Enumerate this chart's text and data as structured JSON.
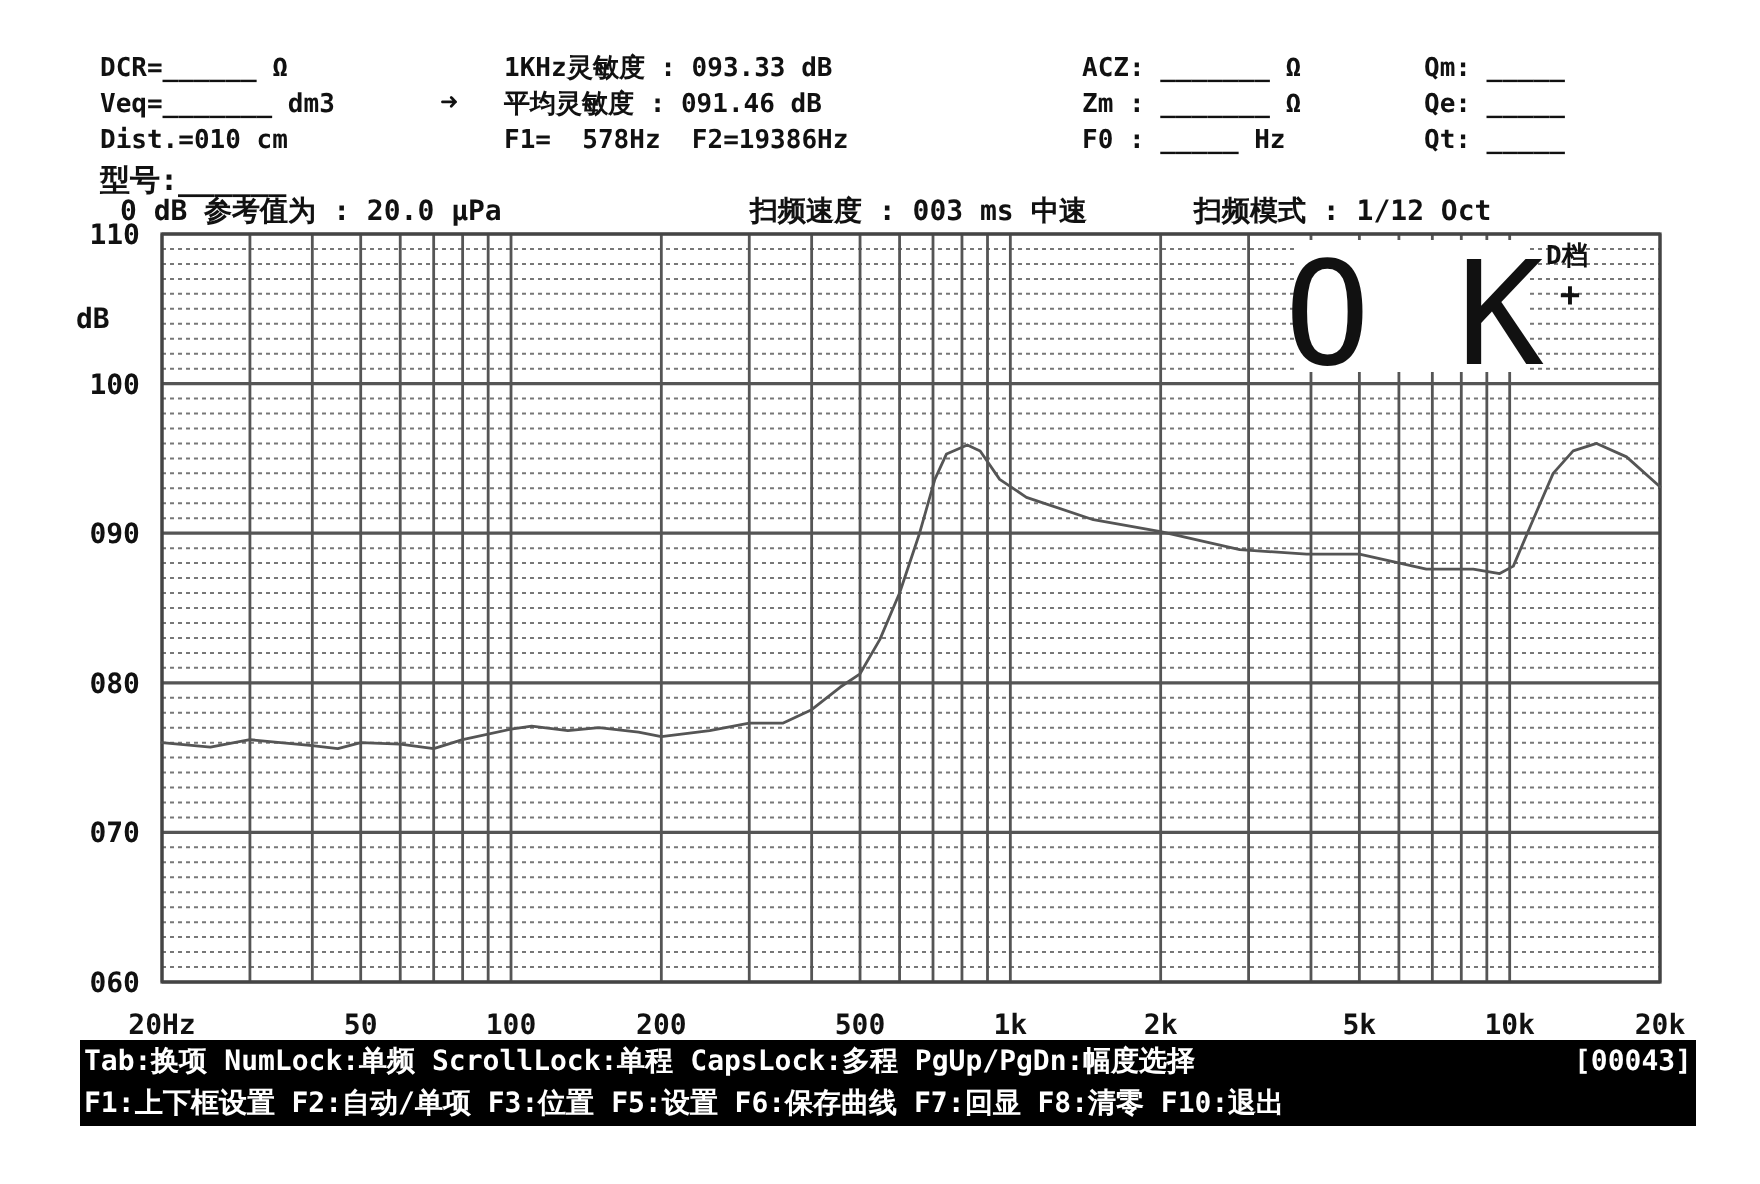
{
  "chart_data": {
    "type": "line",
    "ylabel": "dB",
    "x": [
      20,
      25,
      30,
      40,
      45,
      50,
      60,
      70,
      80,
      100,
      110,
      130,
      150,
      180,
      200,
      250,
      300,
      350,
      400,
      456,
      500,
      548,
      600,
      658,
      706,
      745,
      820,
      870,
      952,
      1077,
      1466,
      2000,
      2880,
      3920,
      5000,
      6810,
      8450,
      9550,
      10170,
      11140,
      12220,
      13400,
      14930,
      17140,
      20000
    ],
    "series": [
      {
        "color": "#555555",
        "values": [
          76.0,
          75.7,
          76.2,
          75.8,
          75.6,
          76.0,
          75.9,
          75.6,
          76.2,
          76.9,
          77.1,
          76.8,
          77.0,
          76.7,
          76.4,
          76.8,
          77.3,
          77.3,
          78.2,
          79.7,
          80.6,
          82.9,
          86.0,
          90.0,
          93.6,
          95.3,
          95.9,
          95.5,
          93.6,
          92.4,
          90.9,
          90.1,
          88.9,
          88.6,
          88.6,
          87.6,
          87.6,
          87.3,
          87.8,
          90.9,
          94.0,
          95.5,
          96.0,
          95.1,
          93.1
        ]
      }
    ],
    "log": "x",
    "xlim": [
      20,
      20000
    ],
    "ylim": [
      60,
      110
    ],
    "xticks": [
      {
        "value": 20,
        "label": "20Hz"
      },
      {
        "value": 30,
        "label": null
      },
      {
        "value": 40,
        "label": null
      },
      50,
      {
        "value": 60,
        "label": null
      },
      {
        "value": 70,
        "label": null
      },
      {
        "value": 80,
        "label": null
      },
      {
        "value": 90,
        "label": null
      },
      100,
      200,
      {
        "value": 300,
        "label": null
      },
      {
        "value": 400,
        "label": null
      },
      500,
      {
        "value": 600,
        "label": null
      },
      {
        "value": 700,
        "label": null
      },
      {
        "value": 800,
        "label": null
      },
      {
        "value": 900,
        "label": null
      },
      {
        "value": 1000,
        "label": "1k"
      },
      {
        "value": 2000,
        "label": "2k"
      },
      {
        "value": 3000,
        "label": null
      },
      {
        "value": 4000,
        "label": null
      },
      {
        "value": 5000,
        "label": "5k"
      },
      {
        "value": 6000,
        "label": null
      },
      {
        "value": 7000,
        "label": null
      },
      {
        "value": 8000,
        "label": null
      },
      {
        "value": 9000,
        "label": null
      },
      {
        "value": 10000,
        "label": "10k"
      },
      {
        "value": 20000,
        "label": "20k"
      }
    ],
    "yticks": [
      {
        "value": 60,
        "label": "060"
      },
      {
        "value": 61,
        "label": null
      },
      {
        "value": 62,
        "label": null
      },
      {
        "value": 63,
        "label": null
      },
      {
        "value": 64,
        "label": null
      },
      {
        "value": 65,
        "label": null
      },
      {
        "value": 66,
        "label": null
      },
      {
        "value": 67,
        "label": null
      },
      {
        "value": 68,
        "label": null
      },
      {
        "value": 69,
        "label": null
      },
      {
        "value": 70,
        "label": "070"
      },
      {
        "value": 71,
        "label": null
      },
      {
        "value": 72,
        "label": null
      },
      {
        "value": 73,
        "label": null
      },
      {
        "value": 74,
        "label": null
      },
      {
        "value": 75,
        "label": null
      },
      {
        "value": 76,
        "label": null
      },
      {
        "value": 77,
        "label": null
      },
      {
        "value": 78,
        "label": null
      },
      {
        "value": 79,
        "label": null
      },
      {
        "value": 80,
        "label": "080"
      },
      {
        "value": 81,
        "label": null
      },
      {
        "value": 82,
        "label": null
      },
      {
        "value": 83,
        "label": null
      },
      {
        "value": 84,
        "label": null
      },
      {
        "value": 85,
        "label": null
      },
      {
        "value": 86,
        "label": null
      },
      {
        "value": 87,
        "label": null
      },
      {
        "value": 88,
        "label": null
      },
      {
        "value": 89,
        "label": null
      },
      {
        "value": 90,
        "label": "090"
      },
      {
        "value": 91,
        "label": null
      },
      {
        "value": 92,
        "label": null
      },
      {
        "value": 93,
        "label": null
      },
      {
        "value": 94,
        "label": null
      },
      {
        "value": 95,
        "label": null
      },
      {
        "value": 96,
        "label": null
      },
      {
        "value": 97,
        "label": null
      },
      {
        "value": 98,
        "label": null
      },
      {
        "value": 99,
        "label": null
      },
      {
        "value": 100,
        "label": "100"
      },
      {
        "value": 101,
        "label": null
      },
      {
        "value": 102,
        "label": null
      },
      {
        "value": 103,
        "label": null
      },
      {
        "value": 104,
        "label": null
      },
      {
        "value": 105,
        "label": null
      },
      {
        "value": 106,
        "label": null
      },
      {
        "value": 107,
        "label": null
      },
      {
        "value": 108,
        "label": null
      },
      {
        "value": 109,
        "label": null
      },
      {
        "value": 110,
        "label": "110"
      }
    ],
    "grid": true,
    "marker": "none",
    "line_style": "solid",
    "annotations": [
      "DCR=______ Ω",
      "Veq=_______ dm3",
      "➜",
      "Dist.=010 cm",
      "型号:______",
      "1KHz灵敏度 : 093.33 dB",
      "平均灵敏度 : 091.46 dB",
      "F1=  578Hz  F2=19386Hz",
      "ACZ: _______ Ω",
      "Zm : _______ Ω",
      "F0 : _____ Hz",
      "Qm: _____",
      "Qe: _____",
      "Qt: _____",
      "0 dB 参考值为 : 20.0 μPa",
      "扫频速度 : 003 ms 中速",
      "扫频模式 : 1/12 Oct",
      "O K",
      "D档",
      "+",
      "Tab:换项 NumLock:单频 ScrollLock:单程 CapsLock:多程 PgUp/PgDn:幅度选择",
      "[00043]",
      "F1:上下框设置 F2:自动/单项 F3:位置 F5:设置 F6:保存曲线 F7:回显 F8:清零 F10:退出"
    ]
  }
}
